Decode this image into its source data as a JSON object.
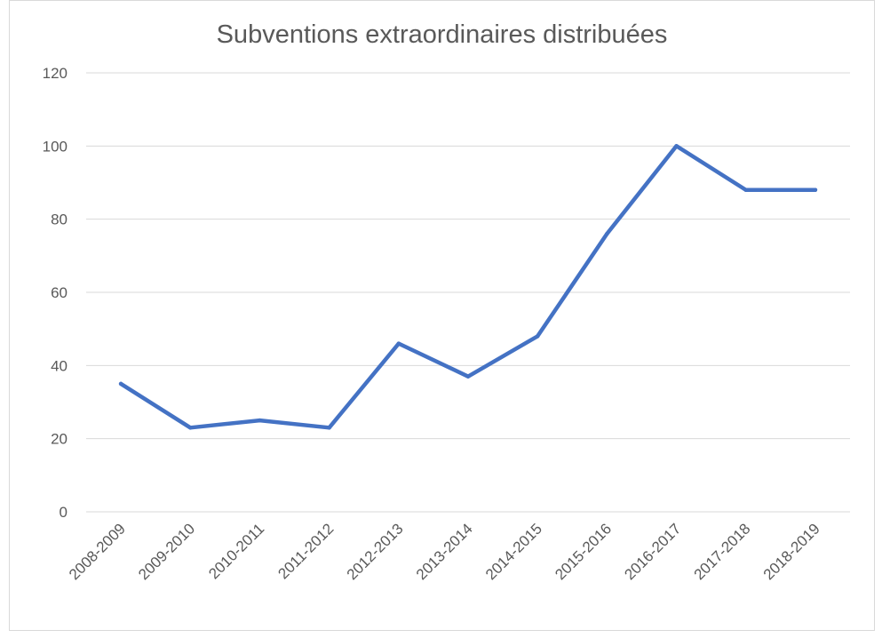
{
  "chart_data": {
    "type": "line",
    "title": "Subventions extraordinaires distribuées",
    "xlabel": "",
    "ylabel": "",
    "categories": [
      "2008-2009",
      "2009-2010",
      "2010-2011",
      "2011-2012",
      "2012-2013",
      "2013-2014",
      "2014-2015",
      "2015-2016",
      "2016-2017",
      "2017-2018",
      "2018-2019"
    ],
    "series": [
      {
        "values": [
          35,
          23,
          25,
          23,
          46,
          37,
          48,
          76,
          100,
          88,
          88
        ]
      }
    ],
    "ylim": [
      0,
      120
    ],
    "yticks": [
      0,
      20,
      40,
      60,
      80,
      100,
      120
    ],
    "grid": true,
    "legend": "none",
    "colors": {
      "line": "#4472c4",
      "grid": "#d9d9d9",
      "text": "#595959"
    }
  }
}
